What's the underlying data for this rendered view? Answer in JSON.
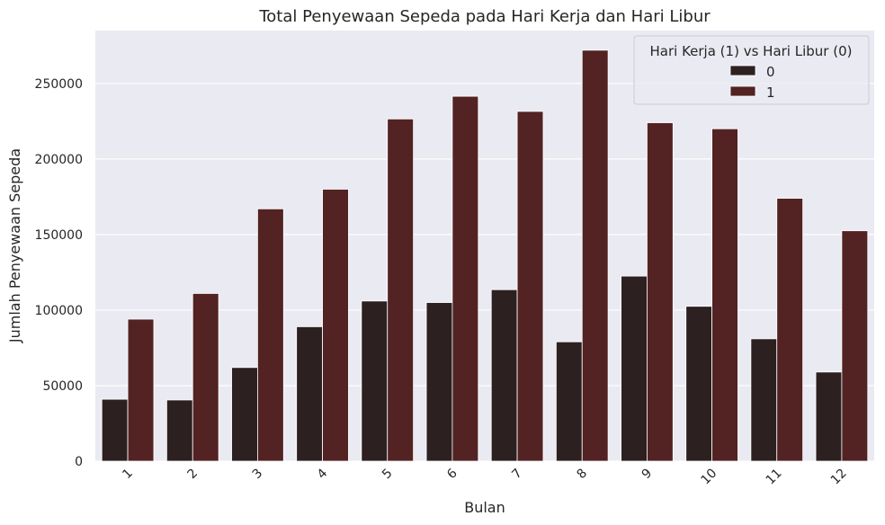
{
  "chart_data": {
    "type": "bar",
    "title": "Total Penyewaan Sepeda pada Hari Kerja dan Hari Libur",
    "xlabel": "Bulan",
    "ylabel": "Jumlah Penyewaan Sepeda",
    "categories": [
      "1",
      "2",
      "3",
      "4",
      "5",
      "6",
      "7",
      "8",
      "9",
      "10",
      "11",
      "12"
    ],
    "ylim": [
      0,
      285000
    ],
    "yticks": [
      0,
      50000,
      100000,
      150000,
      200000,
      250000
    ],
    "ytick_labels": [
      "0",
      "50000",
      "100000",
      "150000",
      "200000",
      "250000"
    ],
    "grid": true,
    "legend": {
      "title": "Hari Kerja (1) vs Hari Libur (0)",
      "placement": "top-right"
    },
    "series": [
      {
        "name": "0",
        "color": "#2c2120",
        "values": [
          41000,
          40500,
          62000,
          89000,
          106000,
          105000,
          113500,
          79000,
          122500,
          102500,
          81000,
          59000
        ]
      },
      {
        "name": "1",
        "color": "#532222",
        "values": [
          94000,
          111000,
          167000,
          180000,
          226500,
          241500,
          231500,
          272000,
          224000,
          220000,
          174000,
          152500
        ]
      }
    ],
    "background_color": "#eaeaf2",
    "grid_color": "#ffffff"
  }
}
